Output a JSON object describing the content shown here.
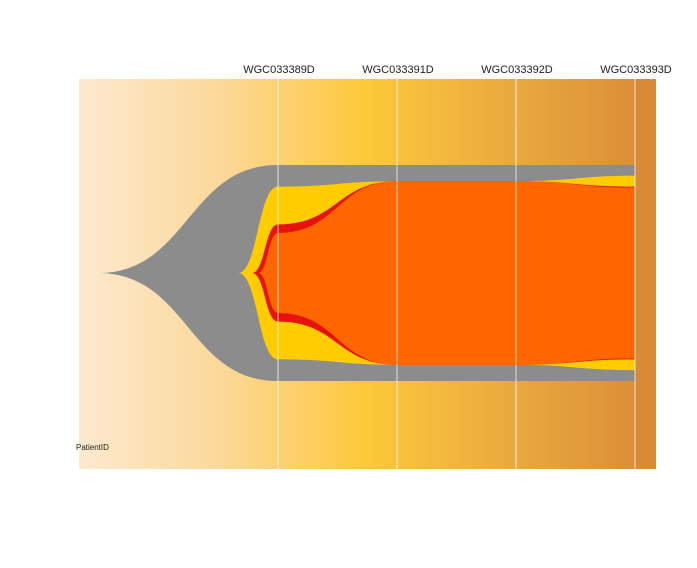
{
  "chart_data": {
    "type": "area",
    "subtype": "fishplot",
    "title": "",
    "xlabel": "",
    "ylabel": "",
    "corner_label": "PatientID",
    "timepoints": [
      "WGC033389D",
      "WGC033391D",
      "WGC033392D",
      "WGC033393D"
    ],
    "background_gradient": [
      "#fde9cf",
      "#fcd898",
      "#fdc83a",
      "#eaa940",
      "#d98a35"
    ],
    "grid_lines": true,
    "legend": "none",
    "clones": [
      {
        "color": "#8c8c8c",
        "fractions": [
          100,
          100,
          100,
          100
        ]
      },
      {
        "color": "#ffcc00",
        "fractions": [
          80,
          85,
          85,
          90
        ]
      },
      {
        "color": "#e8120c",
        "fractions": [
          45,
          85,
          85,
          80
        ]
      },
      {
        "color": "#ff6600",
        "fractions": [
          37,
          85,
          85,
          79
        ]
      }
    ]
  }
}
